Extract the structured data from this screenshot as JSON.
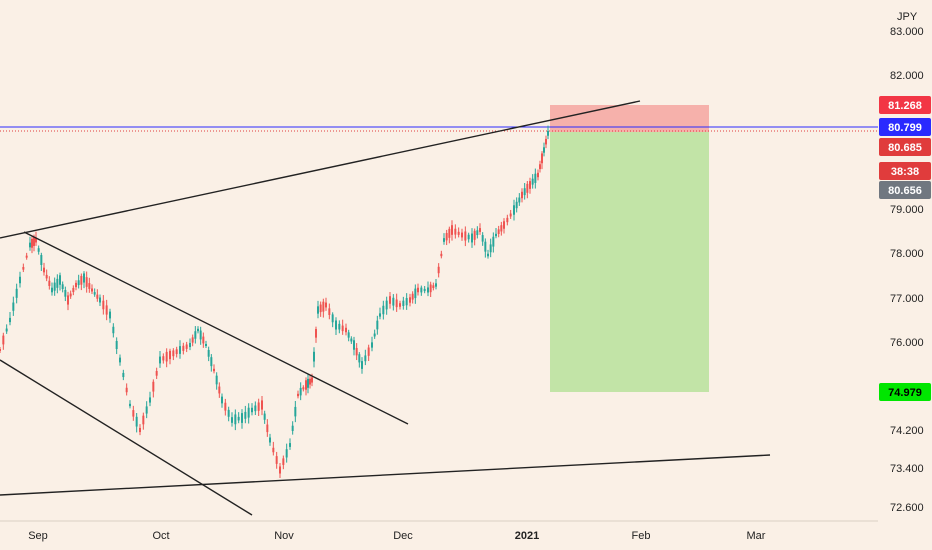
{
  "chart_data": {
    "type": "candlestick",
    "currency_label": "JPY",
    "y_ticks": [
      "83.000",
      "82.000",
      "79.000",
      "78.000",
      "77.000",
      "76.000",
      "74.200",
      "73.400",
      "72.600"
    ],
    "x_ticks": [
      {
        "label": "Sep",
        "bold": false
      },
      {
        "label": "Oct",
        "bold": false
      },
      {
        "label": "Nov",
        "bold": false
      },
      {
        "label": "Dec",
        "bold": false
      },
      {
        "label": "2021",
        "bold": true
      },
      {
        "label": "Feb",
        "bold": false
      },
      {
        "label": "Mar",
        "bold": false
      }
    ],
    "price_badges": [
      {
        "label": "81.268",
        "color": "#f23645",
        "text_color": "#ffffff"
      },
      {
        "label": "80.799",
        "color": "#2a2aff",
        "text_color": "#ffffff"
      },
      {
        "label": "80.685",
        "color": "#e03c3c",
        "text_color": "#ffffff"
      },
      {
        "label": "38:38",
        "color": "#e03c3c",
        "text_color": "#ffffff"
      },
      {
        "label": "80.656",
        "color": "#707780",
        "text_color": "#ffffff"
      },
      {
        "label": "74.979",
        "color": "#00e600",
        "text_color": "#000000"
      }
    ],
    "colors": {
      "up": "#26a69a",
      "down": "#ef5350",
      "stop_zone": "#f4a6a0",
      "target_zone": "#bfe3a3",
      "price_line": "#2a2aff",
      "trendline": "#222222"
    }
  }
}
